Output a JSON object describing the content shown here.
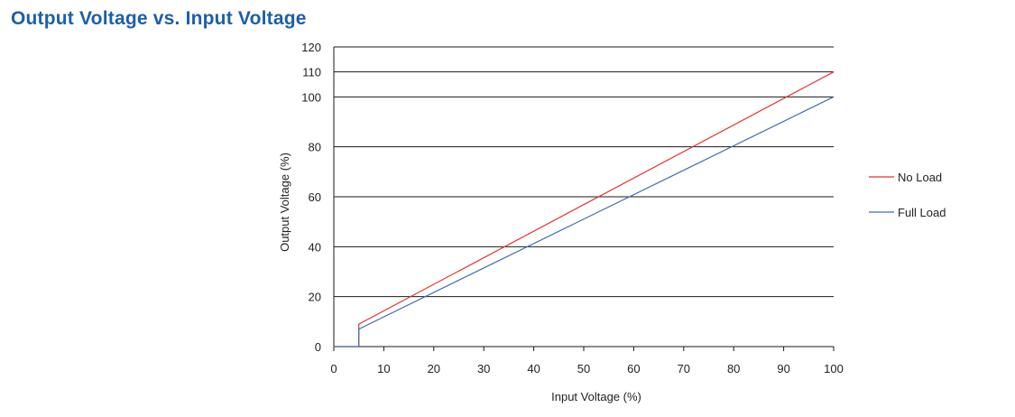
{
  "title": "Output Voltage vs. Input Voltage",
  "colors": {
    "title": "#1d5fa8",
    "no_load": "#e8322f",
    "full_load": "#3d6fb5",
    "grid": "#1a1a1a"
  },
  "chart_data": {
    "type": "line",
    "title": "Output Voltage vs. Input Voltage",
    "xlabel": "Input  Voltage (%)",
    "ylabel": "Output  Voltage (%)",
    "xlim": [
      0,
      100
    ],
    "ylim": [
      0,
      120
    ],
    "x_ticks": [
      0,
      10,
      20,
      30,
      40,
      50,
      60,
      70,
      80,
      90,
      100
    ],
    "y_ticks": [
      0,
      20,
      40,
      60,
      80,
      100,
      110,
      120
    ],
    "grid": "horizontal",
    "legend_position": "right",
    "series": [
      {
        "name": "No Load",
        "color": "#e8322f",
        "x": [
          0,
          5,
          5,
          100
        ],
        "y": [
          0,
          0,
          9,
          110
        ]
      },
      {
        "name": "Full Load",
        "color": "#3d6fb5",
        "x": [
          0,
          5,
          5,
          100
        ],
        "y": [
          0,
          0,
          7,
          100
        ]
      }
    ]
  }
}
